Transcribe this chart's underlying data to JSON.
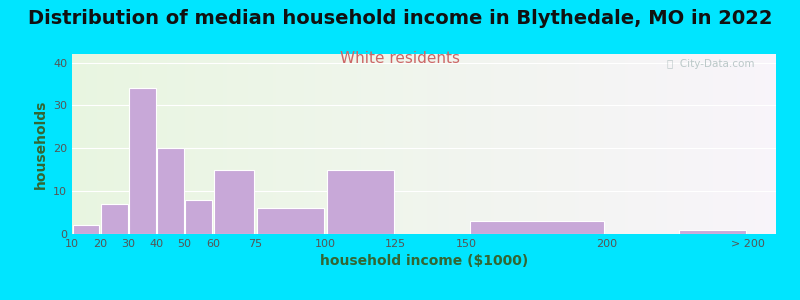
{
  "title": "Distribution of median household income in Blythedale, MO in 2022",
  "subtitle": "White residents",
  "xlabel": "household income ($1000)",
  "ylabel": "households",
  "bar_color": "#c8a8d8",
  "bar_edgecolor": "#ffffff",
  "background_outer": "#00e5ff",
  "background_inner_left": "#e8f5e0",
  "background_inner_right": "#f5f0f8",
  "yticks": [
    0,
    10,
    20,
    30,
    40
  ],
  "ylim": [
    0,
    42
  ],
  "bin_edges": [
    10,
    20,
    30,
    40,
    50,
    60,
    75,
    100,
    125,
    150,
    200,
    225,
    250
  ],
  "bin_labels": [
    "10",
    "20",
    "30",
    "40",
    "50",
    "60",
    "75",
    "100",
    "125",
    "150",
    "200",
    "> 200"
  ],
  "values": [
    2,
    7,
    34,
    20,
    8,
    15,
    6,
    15,
    0,
    3,
    0,
    1
  ],
  "tick_positions": [
    10,
    20,
    30,
    40,
    50,
    60,
    75,
    100,
    125,
    150,
    200,
    250
  ],
  "tick_labels": [
    "10",
    "20",
    "30",
    "40",
    "50",
    "60",
    "75",
    "100",
    "125",
    "150",
    "200",
    "> 200"
  ],
  "title_fontsize": 14,
  "subtitle_fontsize": 11,
  "subtitle_color": "#cc6666",
  "axis_label_fontsize": 10,
  "tick_fontsize": 8,
  "watermark": "ⓘ  City-Data.com"
}
